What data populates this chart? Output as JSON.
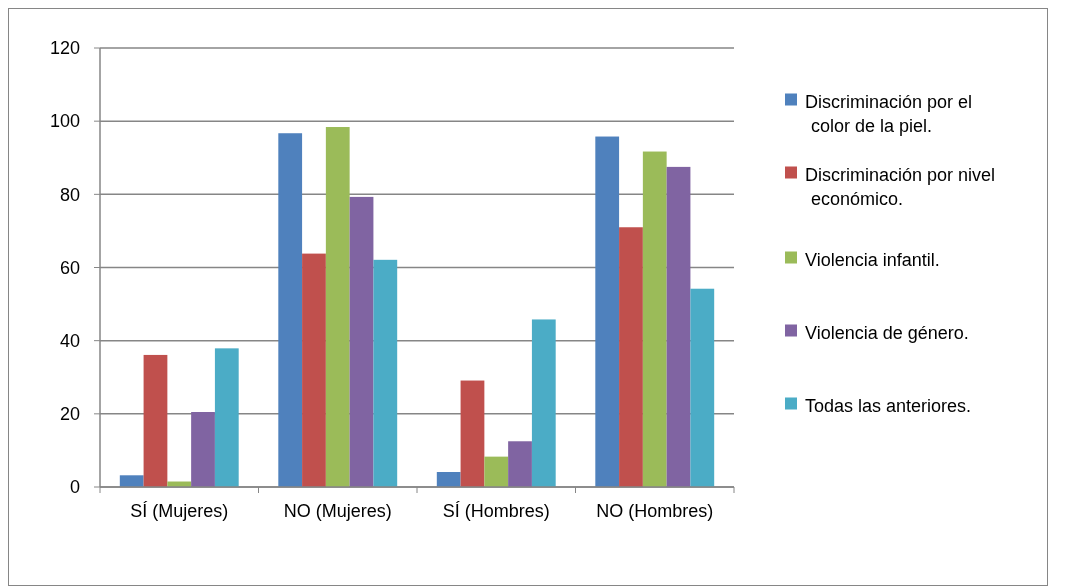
{
  "chart_data": {
    "type": "bar",
    "categories": [
      "SÍ (Mujeres)",
      "NO (Mujeres)",
      "SÍ (Hombres)",
      "NO (Hombres)"
    ],
    "series": [
      {
        "name": "Discriminación por el color de la piel.",
        "color": "#4f81bd",
        "values": [
          3.2,
          96.7,
          4.1,
          95.8
        ]
      },
      {
        "name": "Discriminación por nivel económico.",
        "color": "#c0504d",
        "values": [
          36.1,
          63.8,
          29.1,
          71.0
        ]
      },
      {
        "name": "Violencia infantil.",
        "color": "#9bbb59",
        "values": [
          1.5,
          98.4,
          8.3,
          91.7
        ]
      },
      {
        "name": "Violencia de género.",
        "color": "#8064a2",
        "values": [
          20.5,
          79.3,
          12.5,
          87.5
        ]
      },
      {
        "name": "Todas las anteriores.",
        "color": "#4bacc6",
        "values": [
          37.9,
          62.1,
          45.8,
          54.2
        ]
      }
    ],
    "ylim": [
      0,
      120
    ],
    "yticks": [
      0,
      20,
      40,
      60,
      80,
      100,
      120
    ],
    "grid": "y",
    "legend": "right"
  }
}
